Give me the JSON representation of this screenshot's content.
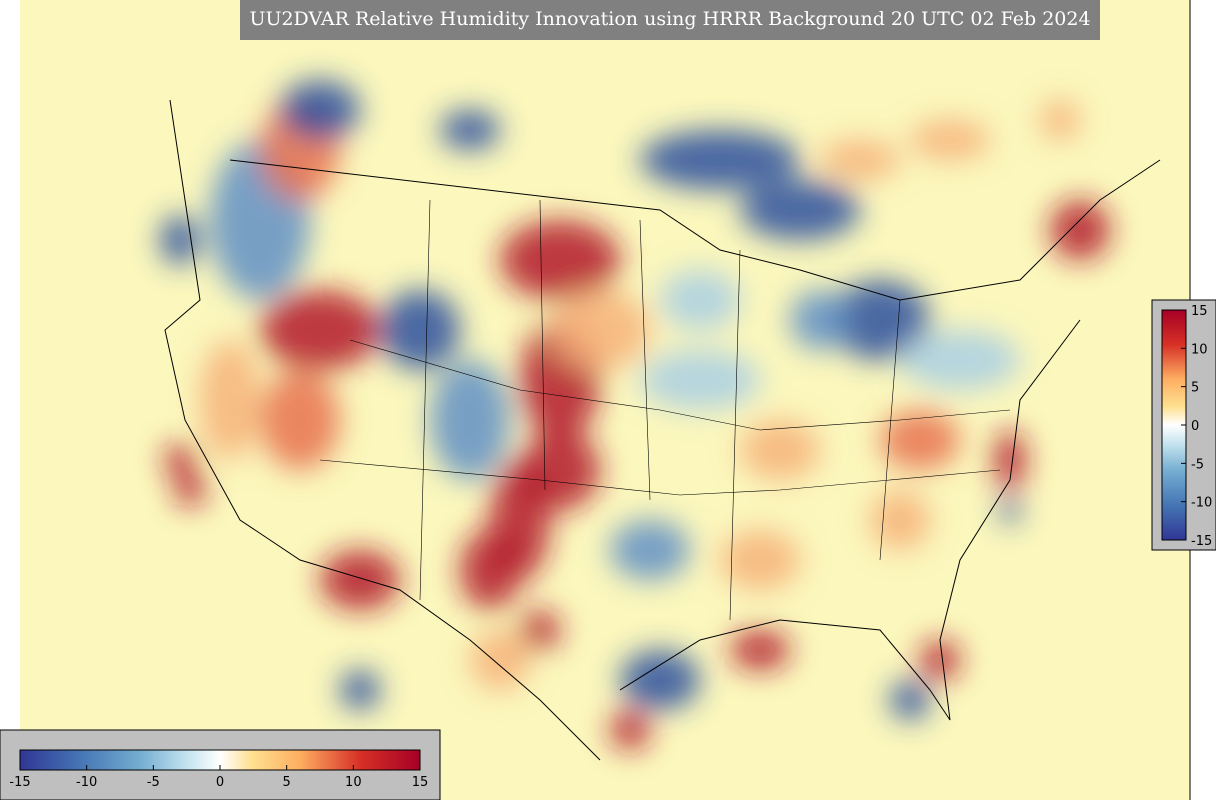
{
  "header": {
    "title": "UU2DVAR Relative Humidity Innovation using HRRR Background 20 UTC 02 Feb 2024"
  },
  "colorbar_horizontal": {
    "range": [
      -15,
      15
    ],
    "ticks": [
      -15,
      -10,
      -5,
      0,
      5,
      10,
      15
    ]
  },
  "colorbar_vertical": {
    "range": [
      -15,
      15
    ],
    "ticks": [
      15,
      10,
      5,
      0,
      -5,
      -10,
      -15
    ]
  }
}
